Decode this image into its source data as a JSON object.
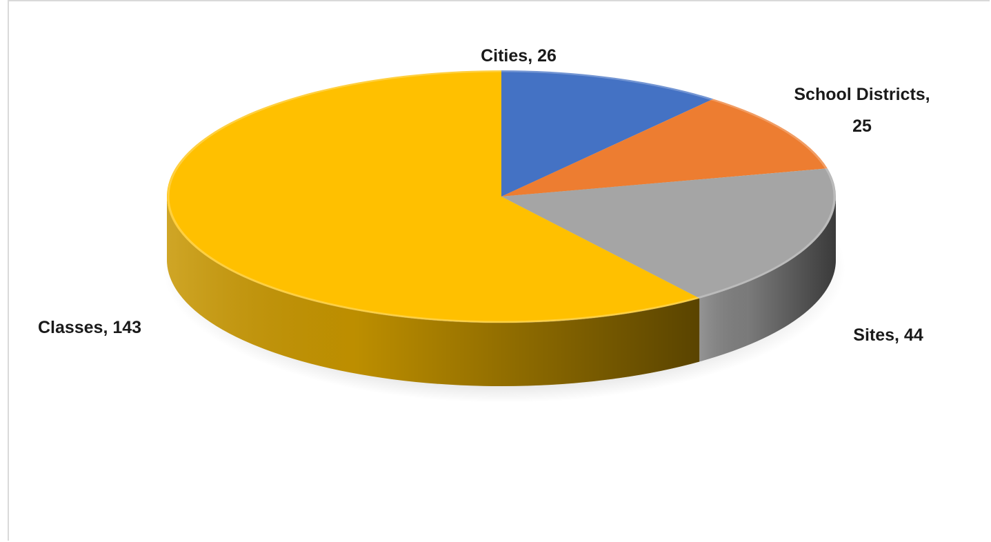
{
  "chart_data": {
    "type": "pie",
    "style": "3d",
    "title": "",
    "categories": [
      "Cities",
      "School Districts",
      "Sites",
      "Classes"
    ],
    "values": [
      26,
      25,
      44,
      143
    ],
    "colors": [
      "#4472C4",
      "#ED7D31",
      "#A5A5A5",
      "#FFC000"
    ],
    "labels": [
      {
        "lines": [
          "Cities, 26"
        ]
      },
      {
        "lines": [
          "School Districts,",
          "25"
        ]
      },
      {
        "lines": [
          "Sites, 44"
        ]
      },
      {
        "lines": [
          "Classes, 143"
        ]
      }
    ],
    "legend": "none"
  }
}
